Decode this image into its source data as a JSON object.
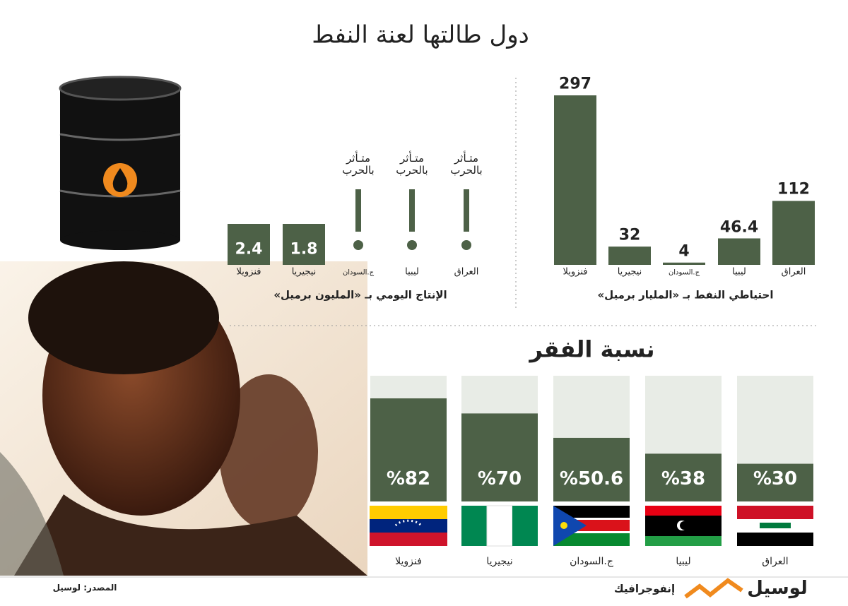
{
  "header": {
    "title": "دول طالتها لعنة النفط"
  },
  "chart_data": [
    {
      "type": "bar",
      "title": "احتياطي النفط بـ «المليار برميل»",
      "categories": [
        "العراق",
        "ليبيا",
        "ج.السودان",
        "نيجيريا",
        "فنزويلا"
      ],
      "values": [
        112,
        46.4,
        4,
        32,
        297
      ],
      "color": "#4d6147"
    },
    {
      "type": "value-box",
      "title": "الإنتاج اليومي بـ «المليون برميل»",
      "categories": [
        "العراق",
        "ليبيا",
        "ج.السودان",
        "نيجيريا",
        "فنزويلا"
      ],
      "values": [
        null,
        null,
        null,
        1.8,
        2.4
      ],
      "annotation": "متـأثر بالحرب",
      "color": "#4d6147"
    },
    {
      "type": "percent-bar",
      "title": "نسبة الفقر",
      "categories": [
        "العراق",
        "ليبيا",
        "ج.السودان",
        "نيجيريا",
        "فنزويلا"
      ],
      "values": [
        30,
        38,
        50.6,
        70,
        82
      ],
      "value_labels": [
        "%30",
        "%38",
        "%50.6",
        "%70",
        "%82"
      ],
      "ylim": [
        0,
        100
      ],
      "color": "#4d6147",
      "background": "#e8ece6"
    }
  ],
  "footer": {
    "source": "المصدر: لوسيل",
    "brand": "لوسيل",
    "label": "إنفوجرافيك"
  }
}
